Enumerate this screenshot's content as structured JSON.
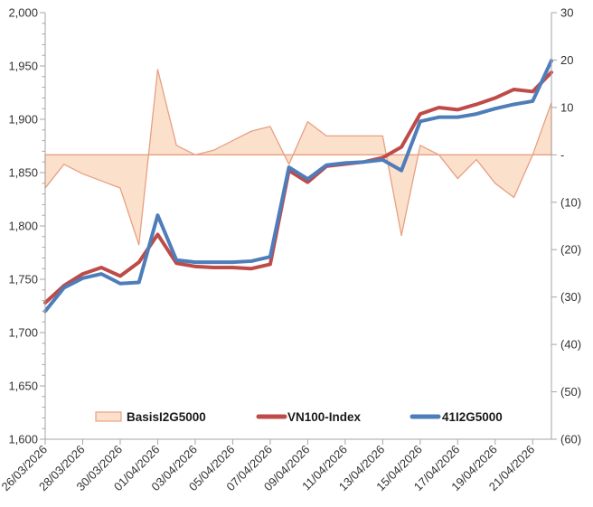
{
  "chart_data": {
    "type": "line",
    "subtype": "combo-area-plus-lines-dual-axis",
    "title": "",
    "categories": [
      "26/03/2026",
      "27/03/2026",
      "28/03/2026",
      "29/03/2026",
      "30/03/2026",
      "31/03/2026",
      "01/04/2026",
      "02/04/2026",
      "03/04/2026",
      "04/04/2026",
      "05/04/2026",
      "06/04/2026",
      "07/04/2026",
      "08/04/2026",
      "09/04/2026",
      "10/04/2026",
      "11/04/2026",
      "12/04/2026",
      "13/04/2026",
      "14/04/2026",
      "15/04/2026",
      "16/04/2026",
      "17/04/2026",
      "18/04/2026",
      "19/04/2026",
      "20/04/2026",
      "21/04/2026",
      "22/04/2026"
    ],
    "x_tick_label_every": 2,
    "x_tick_labels": [
      "26/03/2026",
      "28/03/2026",
      "30/03/2026",
      "01/04/2026",
      "03/04/2026",
      "05/04/2026",
      "07/04/2026",
      "09/04/2026",
      "11/04/2026",
      "13/04/2026",
      "15/04/2026",
      "17/04/2026",
      "19/04/2026",
      "21/04/2026"
    ],
    "series": [
      {
        "name": "BasisI2G5000",
        "type": "area",
        "axis": "right",
        "fill": "#FBE1CC",
        "stroke": "#E89F82",
        "values": [
          -7,
          -2,
          -4,
          -5.5,
          -7,
          -19,
          18,
          2,
          0,
          1,
          3,
          5,
          6,
          -2,
          7,
          4,
          4,
          4,
          4,
          -17,
          2,
          0,
          -5,
          -1,
          -6,
          -9,
          0,
          11
        ]
      },
      {
        "name": "VN100-Index",
        "type": "line",
        "axis": "left",
        "stroke": "#BE4B48",
        "values": [
          1728,
          1744,
          1755,
          1761,
          1753,
          1766,
          1792,
          1765,
          1762,
          1761,
          1761,
          1760,
          1764,
          1852,
          1841,
          1856,
          1858,
          1860,
          1864,
          1874,
          1905,
          1911,
          1909,
          1914,
          1920,
          1928,
          1926,
          1944
        ]
      },
      {
        "name": "41I2G5000",
        "type": "line",
        "axis": "left",
        "stroke": "#4E7DBA",
        "values": [
          1720,
          1742,
          1751,
          1755,
          1746,
          1747,
          1810,
          1768,
          1766,
          1766,
          1766,
          1767,
          1771,
          1855,
          1844,
          1857,
          1859,
          1860,
          1862,
          1852,
          1898,
          1902,
          1902,
          1905,
          1910,
          1914,
          1917,
          1955
        ]
      }
    ],
    "left_axis": {
      "min": 1600,
      "max": 2000,
      "major_step": 50,
      "minor_step": 10,
      "labels": [
        "2,000",
        "1,950",
        "1,900",
        "1,850",
        "1,800",
        "1,750",
        "1,700",
        "1,650",
        "1,600"
      ]
    },
    "right_axis": {
      "min": -60,
      "max": 30,
      "major_step": 10,
      "labels": [
        "30",
        "20",
        "10",
        "-",
        "(10)",
        "(20)",
        "(30)",
        "(40)",
        "(50)",
        "(60)"
      ]
    },
    "legend": {
      "items": [
        {
          "label": "BasisI2G5000",
          "swatch": "area"
        },
        {
          "label": "VN100-Index",
          "swatch": "line-red"
        },
        {
          "label": "41I2G5000",
          "swatch": "line-blue"
        }
      ]
    },
    "colors": {
      "axis_line": "#A6A6A6",
      "tick_text": "#333333",
      "legend_text": "#1a1a1a"
    },
    "grid": "off",
    "legend_position": "bottom-inside"
  }
}
